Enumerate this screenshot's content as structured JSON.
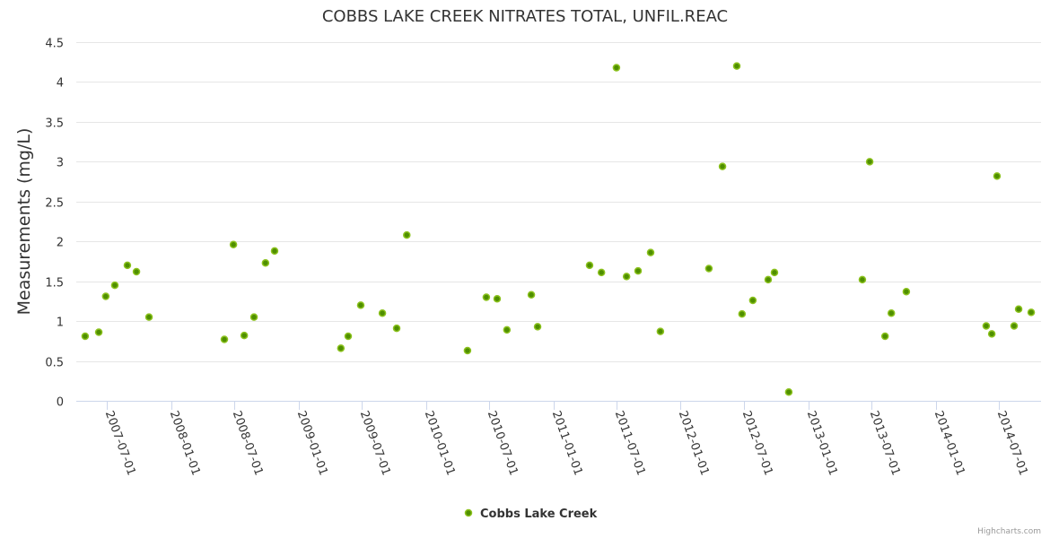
{
  "chart_data": {
    "type": "scatter",
    "title": "COBBS LAKE CREEK NITRATES TOTAL, UNFIL.REAC",
    "xlabel": "",
    "ylabel": "Measurements (mg/L)",
    "ylim": [
      0,
      4.5
    ],
    "yticks": [
      "0",
      "0.5",
      "1",
      "1.5",
      "2",
      "2.5",
      "3",
      "3.5",
      "4",
      "4.5"
    ],
    "xticks": [
      "2007-07-01",
      "2008-01-01",
      "2008-07-01",
      "2009-01-01",
      "2009-07-01",
      "2010-01-01",
      "2010-07-01",
      "2011-01-01",
      "2011-07-01",
      "2012-01-01",
      "2012-07-01",
      "2013-01-01",
      "2013-07-01",
      "2014-01-01",
      "2014-07-01"
    ],
    "grid": true,
    "legend_position": "bottom-center",
    "credits": "Highcharts.com",
    "series": [
      {
        "name": "Cobbs Lake Creek",
        "fill": "#4f8f00",
        "stroke": "#8cc21e",
        "points": [
          [
            "2007-04-30",
            0.81
          ],
          [
            "2007-06-08",
            0.86
          ],
          [
            "2007-06-28",
            1.31
          ],
          [
            "2007-07-24",
            1.45
          ],
          [
            "2007-08-29",
            1.7
          ],
          [
            "2007-09-24",
            1.62
          ],
          [
            "2007-10-30",
            1.05
          ],
          [
            "2008-06-02",
            0.77
          ],
          [
            "2008-06-28",
            1.96
          ],
          [
            "2008-07-29",
            0.82
          ],
          [
            "2008-08-26",
            1.05
          ],
          [
            "2008-09-28",
            1.73
          ],
          [
            "2008-10-24",
            1.88
          ],
          [
            "2009-05-02",
            0.66
          ],
          [
            "2009-05-23",
            0.81
          ],
          [
            "2009-06-28",
            1.2
          ],
          [
            "2009-08-29",
            1.1
          ],
          [
            "2009-10-09",
            0.91
          ],
          [
            "2009-11-07",
            2.08
          ],
          [
            "2010-04-30",
            0.63
          ],
          [
            "2010-06-23",
            1.3
          ],
          [
            "2010-07-24",
            1.28
          ],
          [
            "2010-08-21",
            0.89
          ],
          [
            "2010-10-30",
            1.33
          ],
          [
            "2010-11-17",
            0.93
          ],
          [
            "2011-04-15",
            1.7
          ],
          [
            "2011-05-19",
            1.61
          ],
          [
            "2011-07-01",
            4.18
          ],
          [
            "2011-07-30",
            1.56
          ],
          [
            "2011-09-01",
            1.63
          ],
          [
            "2011-10-07",
            1.86
          ],
          [
            "2011-11-04",
            0.87
          ],
          [
            "2012-03-22",
            1.66
          ],
          [
            "2012-04-30",
            2.94
          ],
          [
            "2012-06-10",
            4.2
          ],
          [
            "2012-06-25",
            1.09
          ],
          [
            "2012-07-26",
            1.26
          ],
          [
            "2012-09-08",
            1.52
          ],
          [
            "2012-09-26",
            1.61
          ],
          [
            "2012-11-06",
            0.11
          ],
          [
            "2013-06-05",
            1.52
          ],
          [
            "2013-06-26",
            3.0
          ],
          [
            "2013-08-09",
            0.81
          ],
          [
            "2013-08-27",
            1.1
          ],
          [
            "2013-10-09",
            1.37
          ],
          [
            "2014-05-26",
            0.94
          ],
          [
            "2014-06-11",
            0.84
          ],
          [
            "2014-06-26",
            2.82
          ],
          [
            "2014-08-14",
            0.94
          ],
          [
            "2014-08-27",
            1.15
          ],
          [
            "2014-10-02",
            1.11
          ]
        ]
      }
    ]
  }
}
